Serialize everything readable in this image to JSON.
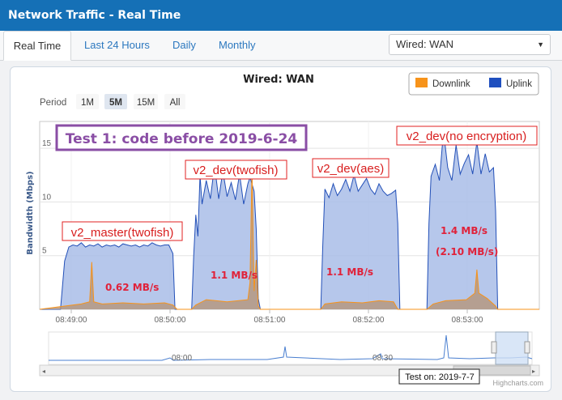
{
  "window": {
    "title": "Network Traffic - Real Time"
  },
  "tabs": [
    {
      "label": "Real Time",
      "active": true
    },
    {
      "label": "Last 24 Hours",
      "active": false
    },
    {
      "label": "Daily",
      "active": false
    },
    {
      "label": "Monthly",
      "active": false
    }
  ],
  "interface_select": {
    "value": "Wired: WAN"
  },
  "period": {
    "label": "Period",
    "options": [
      "1M",
      "5M",
      "15M",
      "All"
    ],
    "selected": "5M"
  },
  "legend": [
    {
      "label": "Downlink",
      "color": "#f7931a"
    },
    {
      "label": "Uplink",
      "color": "#1f4fbf"
    }
  ],
  "credit": "Highcharts.com",
  "navigator": {
    "tick_labels": [
      "08:00",
      "08:30"
    ]
  },
  "annotations": {
    "test_title": "Test 1: code before 2019-6-24",
    "test_date": "Test on: 2019-7-7",
    "phase_labels": [
      "v2_master(twofish)",
      "v2_dev(twofish)",
      "v2_dev(aes)",
      "v2_dev(no encryption)"
    ],
    "speed_labels": [
      "0.62 MB/s",
      "1.1 MB/s",
      "1.1 MB/s",
      "1.4 MB/s",
      "(2.10 MB/s)"
    ]
  },
  "chart_data": {
    "type": "area",
    "title": "Wired: WAN",
    "xlabel": "",
    "ylabel": "Bandwidth (Mbps)",
    "x_ticks": [
      "08:49:00",
      "08:50:00",
      "08:51:00",
      "08:52:00",
      "08:53:00"
    ],
    "y_ticks": [
      5,
      10,
      15
    ],
    "ylim": [
      0,
      17.5
    ],
    "grid": true,
    "legend_position": "top-right",
    "series": [
      {
        "name": "Uplink",
        "color": "#1f4fbf",
        "points": [
          [
            0,
            0
          ],
          [
            10,
            0
          ],
          [
            12,
            4.5
          ],
          [
            14,
            5.8
          ],
          [
            16,
            6
          ],
          [
            18,
            5.9
          ],
          [
            20,
            6.2
          ],
          [
            22,
            5.8
          ],
          [
            24,
            6.0
          ],
          [
            26,
            5.9
          ],
          [
            28,
            6.1
          ],
          [
            30,
            5.8
          ],
          [
            32,
            6.0
          ],
          [
            34,
            5.9
          ],
          [
            36,
            6.0
          ],
          [
            38,
            5.8
          ],
          [
            40,
            6.1
          ],
          [
            42,
            6.0
          ],
          [
            44,
            5.9
          ],
          [
            46,
            6.0
          ],
          [
            48,
            5.8
          ],
          [
            50,
            6.0
          ],
          [
            52,
            5.9
          ],
          [
            54,
            6.2
          ],
          [
            56,
            6.0
          ],
          [
            58,
            5.9
          ],
          [
            60,
            6.0
          ],
          [
            62,
            6.0
          ],
          [
            64,
            5.2
          ],
          [
            65,
            0
          ],
          [
            73,
            0
          ],
          [
            74,
            5
          ],
          [
            75,
            8.8
          ],
          [
            76,
            6.8
          ],
          [
            77,
            12.5
          ],
          [
            78,
            9.8
          ],
          [
            80,
            12.0
          ],
          [
            82,
            10.3
          ],
          [
            84,
            13.4
          ],
          [
            86,
            10.3
          ],
          [
            88,
            12.9
          ],
          [
            90,
            10.5
          ],
          [
            92,
            11.8
          ],
          [
            94,
            10.2
          ],
          [
            96,
            12.6
          ],
          [
            98,
            9.8
          ],
          [
            100,
            11.7
          ],
          [
            101,
            12.3
          ],
          [
            103,
            11.0
          ],
          [
            104,
            7.5
          ],
          [
            105,
            1
          ],
          [
            106,
            0
          ],
          [
            135,
            0
          ],
          [
            136,
            6
          ],
          [
            137,
            11.2
          ],
          [
            139,
            10.4
          ],
          [
            141,
            11.7
          ],
          [
            143,
            10.6
          ],
          [
            145,
            11.2
          ],
          [
            147,
            12.1
          ],
          [
            149,
            11.0
          ],
          [
            151,
            12.5
          ],
          [
            153,
            11.0
          ],
          [
            155,
            11.6
          ],
          [
            157,
            12.2
          ],
          [
            159,
            11.2
          ],
          [
            161,
            10.7
          ],
          [
            163,
            11.7
          ],
          [
            165,
            11.0
          ],
          [
            167,
            10.6
          ],
          [
            169,
            10.8
          ],
          [
            171,
            11.1
          ],
          [
            172,
            8
          ],
          [
            173,
            0
          ],
          [
            186,
            0
          ],
          [
            187,
            8
          ],
          [
            188,
            12.4
          ],
          [
            190,
            13.5
          ],
          [
            192,
            12.0
          ],
          [
            194,
            16.6
          ],
          [
            196,
            13.2
          ],
          [
            198,
            12.0
          ],
          [
            200,
            15.3
          ],
          [
            202,
            12.6
          ],
          [
            204,
            13.6
          ],
          [
            206,
            14.4
          ],
          [
            208,
            12.6
          ],
          [
            210,
            15.6
          ],
          [
            212,
            12.6
          ],
          [
            214,
            14.5
          ],
          [
            216,
            12.8
          ],
          [
            218,
            13.2
          ],
          [
            219,
            9.2
          ],
          [
            220,
            0
          ],
          [
            240,
            0
          ]
        ]
      },
      {
        "name": "Downlink",
        "color": "#f7931a",
        "points": [
          [
            0,
            0
          ],
          [
            12,
            0.3
          ],
          [
            20,
            0.5
          ],
          [
            24,
            0.7
          ],
          [
            25,
            4.4
          ],
          [
            26,
            0.7
          ],
          [
            30,
            0.5
          ],
          [
            40,
            0.6
          ],
          [
            50,
            0.5
          ],
          [
            60,
            0.6
          ],
          [
            64,
            0.4
          ],
          [
            66,
            0
          ],
          [
            73,
            0
          ],
          [
            75,
            0.4
          ],
          [
            80,
            0.9
          ],
          [
            90,
            0.7
          ],
          [
            100,
            0.9
          ],
          [
            101,
            2.5
          ],
          [
            102,
            13.1
          ],
          [
            103,
            1.7
          ],
          [
            104,
            4.6
          ],
          [
            105,
            0.3
          ],
          [
            106,
            0
          ],
          [
            135,
            0
          ],
          [
            137,
            0.5
          ],
          [
            145,
            0.7
          ],
          [
            155,
            0.6
          ],
          [
            163,
            0.8
          ],
          [
            170,
            0.7
          ],
          [
            172,
            0
          ],
          [
            186,
            0
          ],
          [
            189,
            0.5
          ],
          [
            195,
            0.8
          ],
          [
            205,
            0.9
          ],
          [
            209,
            1.5
          ],
          [
            210,
            3.7
          ],
          [
            211,
            1.5
          ],
          [
            215,
            1.0
          ],
          [
            219,
            0.3
          ],
          [
            220,
            0
          ],
          [
            240,
            0
          ]
        ]
      }
    ]
  }
}
